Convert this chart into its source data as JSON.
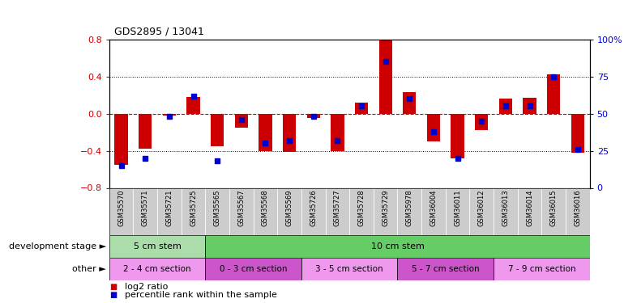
{
  "title": "GDS2895 / 13041",
  "samples": [
    "GSM35570",
    "GSM35571",
    "GSM35721",
    "GSM35725",
    "GSM35565",
    "GSM35567",
    "GSM35568",
    "GSM35569",
    "GSM35726",
    "GSM35727",
    "GSM35728",
    "GSM35729",
    "GSM35978",
    "GSM36004",
    "GSM36011",
    "GSM36012",
    "GSM36013",
    "GSM36014",
    "GSM36015",
    "GSM36016"
  ],
  "log2_ratio": [
    -0.55,
    -0.38,
    -0.02,
    0.18,
    -0.35,
    -0.15,
    -0.4,
    -0.41,
    -0.05,
    -0.4,
    0.12,
    0.8,
    0.23,
    -0.3,
    -0.48,
    -0.18,
    0.16,
    0.17,
    0.42,
    -0.42
  ],
  "percentile": [
    15,
    20,
    48,
    62,
    18,
    46,
    30,
    32,
    48,
    32,
    55,
    85,
    60,
    38,
    20,
    45,
    55,
    55,
    75,
    26
  ],
  "ylim_left": [
    -0.8,
    0.8
  ],
  "ylim_right": [
    0,
    100
  ],
  "bar_color": "#cc0000",
  "dot_color": "#0000cc",
  "ref_line_color": "#cc0000",
  "tick_bg_color": "#cccccc",
  "tick_sep_color": "#ffffff",
  "dev_stage_groups": [
    {
      "label": "5 cm stem",
      "start": 0,
      "end": 4,
      "color": "#aaddaa"
    },
    {
      "label": "10 cm stem",
      "start": 4,
      "end": 20,
      "color": "#66cc66"
    }
  ],
  "other_groups": [
    {
      "label": "2 - 4 cm section",
      "start": 0,
      "end": 4,
      "color": "#ee99ee"
    },
    {
      "label": "0 - 3 cm section",
      "start": 4,
      "end": 8,
      "color": "#cc55cc"
    },
    {
      "label": "3 - 5 cm section",
      "start": 8,
      "end": 12,
      "color": "#ee99ee"
    },
    {
      "label": "5 - 7 cm section",
      "start": 12,
      "end": 16,
      "color": "#cc55cc"
    },
    {
      "label": "7 - 9 cm section",
      "start": 16,
      "end": 20,
      "color": "#ee99ee"
    }
  ],
  "dev_stage_label": "development stage",
  "other_label": "other",
  "legend_log2": "log2 ratio",
  "legend_pct": "percentile rank within the sample"
}
